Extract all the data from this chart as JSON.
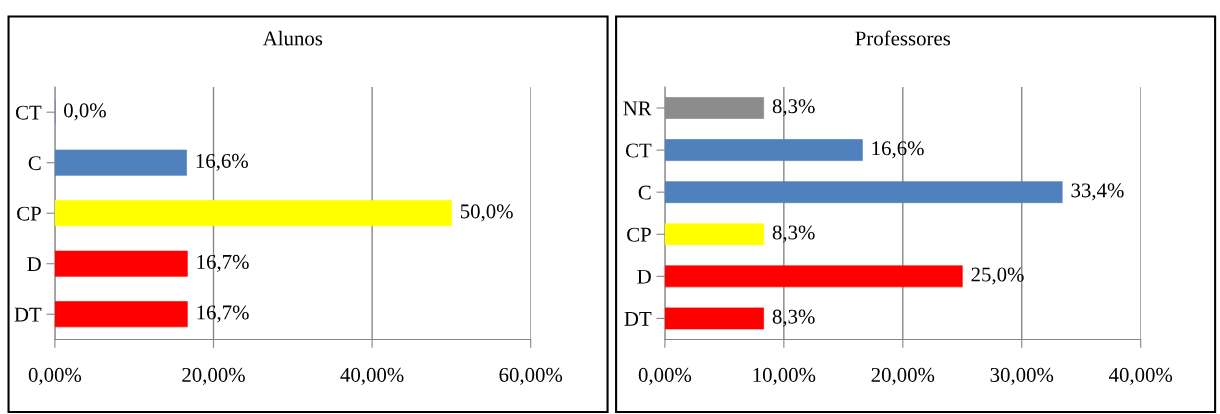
{
  "chart_data": [
    {
      "type": "bar",
      "orientation": "horizontal",
      "title": "Alunos",
      "categories": [
        "CT",
        "C",
        "CP",
        "D",
        "DT"
      ],
      "values": [
        0.0,
        16.6,
        50.0,
        16.7,
        16.7
      ],
      "colors": [
        "#4f81bd",
        "#4f81bd",
        "#ffff00",
        "#ff0000",
        "#ff0000"
      ],
      "value_labels": [
        "0,0%",
        "16,6%",
        "50,0%",
        "16,7%",
        "16,7%"
      ],
      "xlim": [
        0,
        60
      ],
      "xticks": [
        {
          "value": 0,
          "label": "0,00%"
        },
        {
          "value": 20,
          "label": "20,00%"
        },
        {
          "value": 40,
          "label": "40,00%"
        },
        {
          "value": 60,
          "label": "60,00%"
        }
      ],
      "grid": "x"
    },
    {
      "type": "bar",
      "orientation": "horizontal",
      "title": "Professores",
      "categories": [
        "NR",
        "CT",
        "C",
        "CP",
        "D",
        "DT"
      ],
      "values": [
        8.3,
        16.6,
        33.4,
        8.3,
        25.0,
        8.3
      ],
      "colors": [
        "#8c8c8c",
        "#4f81bd",
        "#4f81bd",
        "#ffff00",
        "#ff0000",
        "#ff0000"
      ],
      "value_labels": [
        "8,3%",
        "16,6%",
        "33,4%",
        "8,3%",
        "25,0%",
        "8,3%"
      ],
      "xlim": [
        0,
        40
      ],
      "xticks": [
        {
          "value": 0,
          "label": "0,00%"
        },
        {
          "value": 10,
          "label": "10,00%"
        },
        {
          "value": 20,
          "label": "20,00%"
        },
        {
          "value": 30,
          "label": "30,00%"
        },
        {
          "value": 40,
          "label": "40,00%"
        }
      ],
      "grid": "x"
    }
  ]
}
